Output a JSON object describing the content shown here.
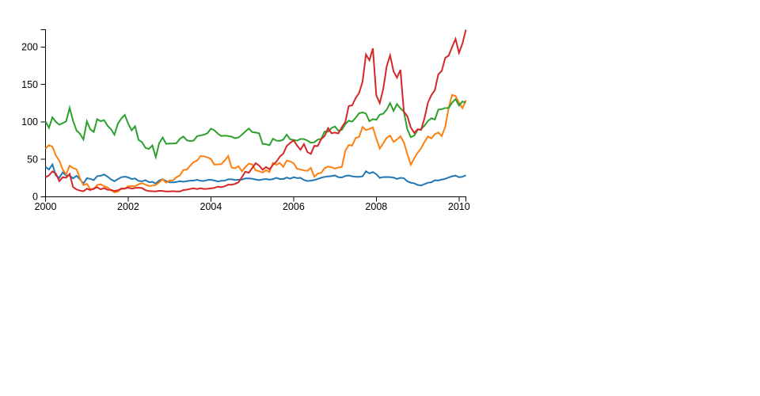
{
  "page": {
    "background": "#ffffff"
  },
  "chart_data": {
    "type": "line",
    "title": "",
    "xlabel": "",
    "ylabel": "",
    "grid": false,
    "legend": "none",
    "x_axis": {
      "start": "2000-01",
      "end": "2010-03",
      "interval": "monthly",
      "points_per_series": 123,
      "tick_labels": [
        "2000",
        "2002",
        "2004",
        "2006",
        "2008",
        "2010"
      ],
      "tick_month_indices": [
        0,
        24,
        48,
        72,
        96,
        120
      ]
    },
    "y_axis": {
      "tick_labels": [
        "0",
        "50",
        "100",
        "150",
        "200"
      ],
      "tick_values": [
        0,
        50,
        100,
        150,
        200
      ],
      "ylim": [
        0,
        223.02
      ]
    },
    "series": [
      {
        "name": "blue-series",
        "color": "#1f77b4",
        "values": [
          39.81,
          36.35,
          43.22,
          28.37,
          25.45,
          32.54,
          28.4,
          28.4,
          24.53,
          28.02,
          23.34,
          17.65,
          24.84,
          24,
          22.25,
          27.56,
          28.14,
          29.7,
          26.93,
          23.21,
          20.82,
          23.65,
          26.12,
          26.95,
          25.92,
          23.73,
          24.53,
          21.26,
          20.71,
          22.25,
          19.52,
          19.97,
          17.79,
          21.75,
          23.46,
          21.03,
          19.31,
          19.34,
          19.76,
          20.87,
          20.09,
          20.93,
          21.56,
          21.65,
          22.69,
          21.45,
          21.1,
          22.46,
          22.69,
          21.77,
          20.46,
          21.45,
          21.53,
          23.44,
          23.38,
          22.47,
          22.76,
          23.02,
          24.6,
          24.52,
          24.11,
          23.15,
          22.24,
          23.28,
          23.82,
          22.93,
          23.64,
          25.35,
          23.83,
          23.8,
          25.71,
          24.29,
          26.14,
          24.99,
          25.28,
          22.45,
          21.03,
          21.63,
          22.33,
          23.87,
          25.39,
          26.63,
          27.25,
          27.66,
          28.57,
          26.15,
          25.86,
          27.74,
          28.5,
          27.32,
          26.86,
          26.6,
          27.34,
          34.16,
          31.25,
          33.06,
          30.25,
          25.23,
          26.34,
          26.44,
          26.29,
          25.64,
          23.87,
          25.37,
          24.79,
          20.73,
          18.79,
          18.04,
          15.81,
          15.04,
          17.03,
          18.84,
          19.45,
          22.11,
          21.87,
          23.01,
          23.95,
          25.78,
          27.34,
          28.38,
          26.16,
          26.65,
          28.8
        ]
      },
      {
        "name": "orange-series",
        "color": "#ff7f0e",
        "values": [
          64.56,
          68.87,
          67,
          55.19,
          48.31,
          36.31,
          30.12,
          41.54,
          38.44,
          36.62,
          24.69,
          15.56,
          17.31,
          10.19,
          10.23,
          15.78,
          16.69,
          14.15,
          12.49,
          8.94,
          5.97,
          6.98,
          11.32,
          10.82,
          14.19,
          14.1,
          14.3,
          16.69,
          18.23,
          16.25,
          14.45,
          14.94,
          15.93,
          19.36,
          23.35,
          18.89,
          21.85,
          22.01,
          26.03,
          28.69,
          35.89,
          36.32,
          41.64,
          46.32,
          48.43,
          54.43,
          53.97,
          52.62,
          50.4,
          43.01,
          43.28,
          43.6,
          48.5,
          54.4,
          38.92,
          38.14,
          40.86,
          34.13,
          39.68,
          44.29,
          43.22,
          35.18,
          34.27,
          32.36,
          35.51,
          33.09,
          45.15,
          42.7,
          45.3,
          39.86,
          48.46,
          47.15,
          44.82,
          37.44,
          36.53,
          35.21,
          34.61,
          38.68,
          26.89,
          30.83,
          32.12,
          38.09,
          40.34,
          39.46,
          37.67,
          39.14,
          39.79,
          61.33,
          69.14,
          68.41,
          78.54,
          79.91,
          93.15,
          89.15,
          90.56,
          92.64,
          77.7,
          64.47,
          71.3,
          78.63,
          81.62,
          73.33,
          76.34,
          80.81,
          72.76,
          57.24,
          42.7,
          51.28,
          58.82,
          64.79,
          73.44,
          80.52,
          77.99,
          83.66,
          85.76,
          81.19,
          93.36,
          118.81,
          135.91,
          134.52,
          125.41,
          118.4,
          128.82
        ]
      },
      {
        "name": "green-series",
        "color": "#2ca02c",
        "values": [
          100.52,
          92.11,
          106.11,
          99.95,
          96.31,
          98.33,
          100.74,
          118.62,
          101.19,
          88.5,
          84.12,
          76.47,
          100.76,
          89.98,
          86.63,
          103.7,
          100.82,
          102.35,
          94.87,
          90.25,
          82.82,
          97.58,
          104.5,
          109.36,
          97.54,
          88.82,
          94.15,
          75.82,
          72.97,
          65.31,
          63.86,
          68.52,
          53.01,
          71.76,
          79.16,
          70.58,
          71.22,
          71.13,
          71.57,
          77.47,
          80.48,
          75.42,
          74.28,
          75.12,
          80.91,
          81.96,
          82.87,
          84.92,
          90.99,
          88.7,
          84.41,
          81.04,
          81.59,
          81.19,
          80.19,
          78.17,
          79.13,
          82.84,
          87.15,
          91.16,
          86.39,
          85.78,
          84.66,
          70.77,
          70.18,
          68.93,
          77.53,
          75.07,
          74.7,
          76.25,
          82.98,
          76.73,
          75.89,
          74.99,
          77.17,
          77.05,
          75.04,
          72.15,
          72.7,
          76.35,
          77.26,
          87.06,
          86.95,
          91.9,
          93.79,
          88.18,
          89.44,
          96.98,
          101.54,
          100.25,
          105.4,
          111.54,
          112.6,
          111,
          100.9,
          103.7,
          102.75,
          109.64,
          110.87,
          116.23,
          125.14,
          114.6,
          123.74,
          118.16,
          113.53,
          90.24,
          79.65,
          81.6,
          89.46,
          90.32,
          95.09,
          101.29,
          104.85,
          103.01,
          116.34,
          117,
          118.55,
          118.57,
          125.79,
          130.32,
          121.85,
          127.16,
          125.55
        ]
      },
      {
        "name": "red-series",
        "color": "#d62728",
        "values": [
          25.94,
          28.66,
          33.95,
          31.01,
          21,
          26.19,
          25.41,
          30.47,
          12.88,
          9.78,
          8.25,
          7.44,
          10.81,
          9.12,
          11.03,
          12.74,
          9.98,
          11.62,
          9.4,
          9.27,
          7.76,
          8.78,
          10.65,
          10.95,
          12.36,
          10.85,
          11.84,
          12.14,
          11.65,
          8.86,
          7.63,
          7.38,
          7.25,
          8.03,
          7.75,
          7.16,
          7.18,
          7.51,
          7.07,
          7.11,
          8.98,
          9.53,
          10.54,
          11.31,
          10.36,
          11.44,
          10.45,
          10.69,
          11.28,
          11.96,
          13.52,
          12.89,
          14.03,
          16.27,
          16.17,
          17.25,
          19.38,
          26.2,
          33.53,
          32.2,
          38.45,
          44.86,
          41.67,
          36.06,
          39.76,
          36.81,
          42.65,
          46.89,
          53.61,
          57.59,
          67.82,
          71.89,
          75.51,
          68.49,
          62.72,
          70.39,
          59.77,
          57.27,
          67.96,
          67.85,
          76.98,
          81.08,
          91.66,
          84.84,
          85.73,
          84.61,
          92.91,
          99.8,
          121.19,
          122.04,
          131.76,
          138.48,
          153.47,
          189.95,
          182.22,
          198.08,
          135.36,
          125.02,
          143.5,
          173.95,
          188.75,
          167.44,
          158.95,
          169.53,
          113.66,
          107.59,
          92.67,
          85.35,
          90.13,
          89.31,
          105.12,
          125.83,
          135.81,
          142.43,
          163.39,
          168.21,
          185.35,
          188.5,
          199.91,
          210.73,
          192.06,
          204.62,
          223.02
        ]
      }
    ]
  }
}
